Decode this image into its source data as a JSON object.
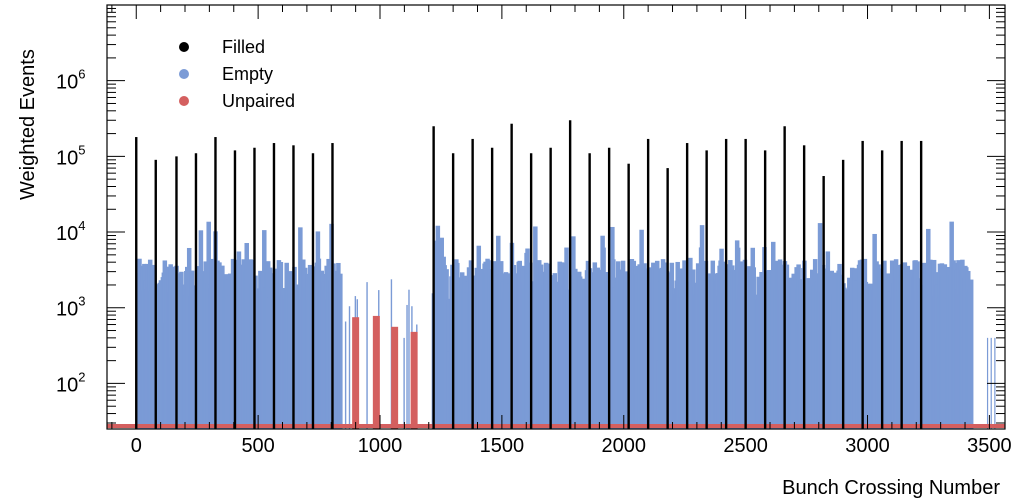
{
  "chart_data": {
    "type": "bar",
    "title": "",
    "xlabel": "Bunch Crossing Number",
    "ylabel": "Weighted Events",
    "xlim": [
      -120,
      3564
    ],
    "ylim": [
      25,
      10000000
    ],
    "yscale": "log",
    "x_ticks": [
      0,
      500,
      1000,
      1500,
      2000,
      2500,
      3000,
      3500
    ],
    "y_ticks": [
      {
        "base": "10",
        "exp": "2",
        "value": 100
      },
      {
        "base": "10",
        "exp": "3",
        "value": 1000
      },
      {
        "base": "10",
        "exp": "4",
        "value": 10000
      },
      {
        "base": "10",
        "exp": "5",
        "value": 100000
      },
      {
        "base": "10",
        "exp": "6",
        "value": 1000000
      }
    ],
    "grid": false,
    "legend_position": "top-left",
    "colors": {
      "Filled": "#000000",
      "Empty": "#7b9bd6",
      "Unpaired": "#d45f5f"
    },
    "series": [
      {
        "name": "Filled",
        "x": [
          0,
          80,
          165,
          245,
          325,
          405,
          485,
          565,
          645,
          725,
          805,
          1220,
          1300,
          1380,
          1460,
          1540,
          1620,
          1700,
          1780,
          1860,
          1940,
          2020,
          2100,
          2180,
          2260,
          2340,
          2420,
          2500,
          2580,
          2660,
          2740,
          2820,
          2900,
          2980,
          3060,
          3140,
          3220
        ],
        "values": [
          180000,
          90000,
          100000,
          110000,
          180000,
          120000,
          130000,
          150000,
          140000,
          110000,
          150000,
          250000,
          110000,
          170000,
          130000,
          270000,
          110000,
          130000,
          300000,
          110000,
          130000,
          80000,
          170000,
          70000,
          150000,
          120000,
          170000,
          170000,
          120000,
          250000,
          140000,
          55000,
          90000,
          160000,
          120000,
          160000,
          160000
        ]
      },
      {
        "name": "Unpaired",
        "x": [
          900,
          985,
          1060,
          1140
        ],
        "values": [
          750,
          780,
          560,
          480
        ]
      },
      {
        "name": "Empty",
        "x": [],
        "values": []
      }
    ],
    "legend": [
      "Filled",
      "Empty",
      "Unpaired"
    ]
  }
}
